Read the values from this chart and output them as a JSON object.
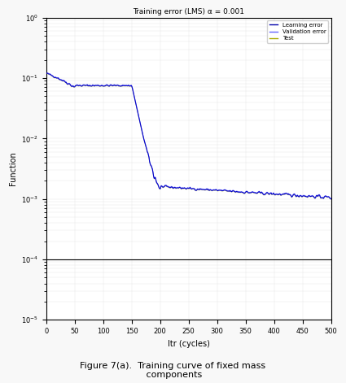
{
  "title": "Training error (LMS) α = 0.001",
  "xlabel": "Itr (cycles)",
  "ylabel": "Function",
  "legend_labels": [
    "Learning error",
    "Validation error",
    "Test"
  ],
  "legend_colors": [
    "#0000aa",
    "#6666ff",
    "#aaaa00"
  ],
  "line_color_train": "#0000cc",
  "line_color_val": "#6666ff",
  "line_color_test": "#aaaa33",
  "background_color": "#f0f0f0",
  "plot_bg": "#ffffff",
  "fig_caption": "Figure 7(a).  Training curve of fixed mass\n components",
  "xlim": [
    0,
    500
  ],
  "ylim_log_min": -5,
  "ylim_log_max": 0,
  "hline_y": 0.0001,
  "step1_end": 50,
  "step1_val": 0.12,
  "step2_start": 50,
  "step2_end": 150,
  "step2_val": 0.07,
  "step3_start": 150,
  "step3_end": 200,
  "step3_val": 0.005,
  "final_val": 0.0008
}
